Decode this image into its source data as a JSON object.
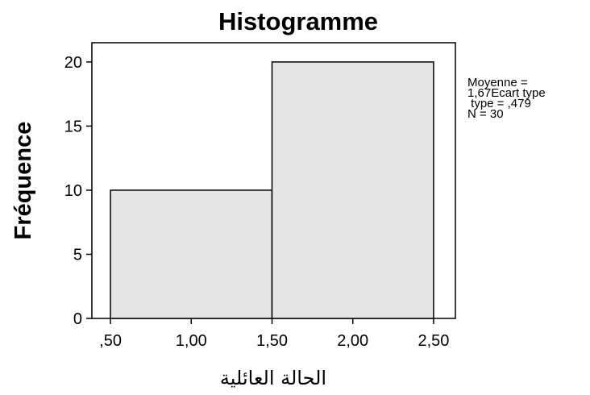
{
  "chart_data": {
    "type": "bar",
    "title": "Histogramme",
    "xlabel": "الحالة العائلية",
    "ylabel": "Fréquence",
    "bins": [
      {
        "start": 0.5,
        "end": 1.5,
        "count": 10
      },
      {
        "start": 1.5,
        "end": 2.5,
        "count": 20
      }
    ],
    "x_ticks": [
      0.5,
      1.0,
      1.5,
      2.0,
      2.5
    ],
    "x_tick_labels": [
      ",50",
      "1,00",
      "1,50",
      "2,00",
      "2,50"
    ],
    "y_ticks": [
      0,
      5,
      10,
      15,
      20
    ],
    "y_tick_labels": [
      "0",
      "5",
      "10",
      "15",
      "20"
    ],
    "xlim": [
      0.385,
      2.635
    ],
    "ylim": [
      0,
      21.5
    ],
    "grid": false,
    "colors": {
      "bar_fill": "#e5e5e5",
      "bar_stroke": "#000000",
      "background": "#ffffff"
    },
    "stats_lines": [
      "Moyenne =",
      "1,67Ecart type",
      " type = ,479",
      "N = 30"
    ]
  }
}
